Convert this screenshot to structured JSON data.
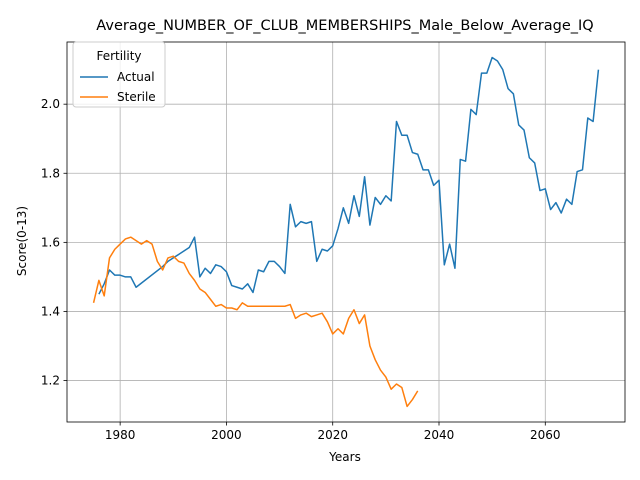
{
  "chart_data": {
    "type": "line",
    "title": "Average_NUMBER_OF_CLUB_MEMBERSHIPS_Male_Below_Average_IQ",
    "xlabel": "Years",
    "ylabel": "Score(0-13)",
    "xlim": [
      1970,
      2075
    ],
    "ylim": [
      1.08,
      2.18
    ],
    "xticks": [
      1980,
      2000,
      2020,
      2040,
      2060
    ],
    "yticks": [
      1.2,
      1.4,
      1.6,
      1.8,
      2.0
    ],
    "grid": true,
    "legend": {
      "title": "Fertility",
      "placement": "top-left"
    },
    "series": [
      {
        "name": "Actual",
        "color": "#1f77b4",
        "points": [
          [
            1976,
            1.45
          ],
          [
            1977,
            1.48
          ],
          [
            1978,
            1.52
          ],
          [
            1979,
            1.505
          ],
          [
            1980,
            1.505
          ],
          [
            1981,
            1.5
          ],
          [
            1982,
            1.5
          ],
          [
            1983,
            1.47
          ],
          [
            1988,
            1.53
          ],
          [
            1989,
            1.545
          ],
          [
            1990,
            1.555
          ],
          [
            1991,
            1.565
          ],
          [
            1992,
            1.575
          ],
          [
            1993,
            1.585
          ],
          [
            1994,
            1.615
          ],
          [
            1995,
            1.5
          ],
          [
            1996,
            1.525
          ],
          [
            1997,
            1.51
          ],
          [
            1998,
            1.535
          ],
          [
            1999,
            1.53
          ],
          [
            2000,
            1.515
          ],
          [
            2001,
            1.475
          ],
          [
            2002,
            1.47
          ],
          [
            2003,
            1.465
          ],
          [
            2004,
            1.48
          ],
          [
            2005,
            1.455
          ],
          [
            2006,
            1.52
          ],
          [
            2007,
            1.515
          ],
          [
            2008,
            1.545
          ],
          [
            2009,
            1.545
          ],
          [
            2010,
            1.53
          ],
          [
            2011,
            1.51
          ],
          [
            2012,
            1.71
          ],
          [
            2013,
            1.645
          ],
          [
            2014,
            1.66
          ],
          [
            2015,
            1.655
          ],
          [
            2016,
            1.66
          ],
          [
            2017,
            1.545
          ],
          [
            2018,
            1.58
          ],
          [
            2019,
            1.575
          ],
          [
            2020,
            1.59
          ],
          [
            2021,
            1.64
          ],
          [
            2022,
            1.7
          ],
          [
            2023,
            1.655
          ],
          [
            2024,
            1.735
          ],
          [
            2025,
            1.675
          ],
          [
            2026,
            1.79
          ],
          [
            2027,
            1.65
          ],
          [
            2028,
            1.73
          ],
          [
            2029,
            1.71
          ],
          [
            2030,
            1.735
          ],
          [
            2031,
            1.72
          ],
          [
            2032,
            1.95
          ],
          [
            2033,
            1.91
          ],
          [
            2034,
            1.91
          ],
          [
            2035,
            1.86
          ],
          [
            2036,
            1.855
          ],
          [
            2037,
            1.81
          ],
          [
            2038,
            1.81
          ],
          [
            2039,
            1.765
          ],
          [
            2040,
            1.78
          ],
          [
            2041,
            1.535
          ],
          [
            2042,
            1.595
          ],
          [
            2043,
            1.525
          ],
          [
            2044,
            1.84
          ],
          [
            2045,
            1.835
          ],
          [
            2046,
            1.985
          ],
          [
            2047,
            1.97
          ],
          [
            2048,
            2.09
          ],
          [
            2049,
            2.09
          ],
          [
            2050,
            2.135
          ],
          [
            2051,
            2.125
          ],
          [
            2052,
            2.1
          ],
          [
            2053,
            2.045
          ],
          [
            2054,
            2.03
          ],
          [
            2055,
            1.94
          ],
          [
            2056,
            1.925
          ],
          [
            2057,
            1.845
          ],
          [
            2058,
            1.83
          ],
          [
            2059,
            1.75
          ],
          [
            2060,
            1.755
          ],
          [
            2061,
            1.695
          ],
          [
            2062,
            1.715
          ],
          [
            2063,
            1.685
          ],
          [
            2064,
            1.725
          ],
          [
            2065,
            1.71
          ],
          [
            2066,
            1.805
          ],
          [
            2067,
            1.81
          ],
          [
            2068,
            1.96
          ],
          [
            2069,
            1.95
          ],
          [
            2070,
            2.1
          ]
        ]
      },
      {
        "name": "Sterile",
        "color": "#ff7f0e",
        "points": [
          [
            1975,
            1.425
          ],
          [
            1976,
            1.49
          ],
          [
            1977,
            1.445
          ],
          [
            1978,
            1.555
          ],
          [
            1979,
            1.58
          ],
          [
            1980,
            1.595
          ],
          [
            1981,
            1.61
          ],
          [
            1982,
            1.615
          ],
          [
            1983,
            1.605
          ],
          [
            1984,
            1.595
          ],
          [
            1985,
            1.605
          ],
          [
            1986,
            1.595
          ],
          [
            1987,
            1.545
          ],
          [
            1988,
            1.52
          ],
          [
            1989,
            1.555
          ],
          [
            1990,
            1.56
          ],
          [
            1991,
            1.545
          ],
          [
            1992,
            1.54
          ],
          [
            1993,
            1.51
          ],
          [
            1994,
            1.49
          ],
          [
            1995,
            1.465
          ],
          [
            1996,
            1.455
          ],
          [
            1997,
            1.435
          ],
          [
            1998,
            1.415
          ],
          [
            1999,
            1.42
          ],
          [
            2000,
            1.41
          ],
          [
            2001,
            1.41
          ],
          [
            2002,
            1.405
          ],
          [
            2003,
            1.425
          ],
          [
            2004,
            1.415
          ],
          [
            2005,
            1.415
          ],
          [
            2006,
            1.415
          ],
          [
            2007,
            1.415
          ],
          [
            2008,
            1.415
          ],
          [
            2009,
            1.415
          ],
          [
            2010,
            1.415
          ],
          [
            2011,
            1.415
          ],
          [
            2012,
            1.42
          ],
          [
            2013,
            1.38
          ],
          [
            2014,
            1.39
          ],
          [
            2015,
            1.395
          ],
          [
            2016,
            1.385
          ],
          [
            2017,
            1.39
          ],
          [
            2018,
            1.395
          ],
          [
            2019,
            1.37
          ],
          [
            2020,
            1.335
          ],
          [
            2021,
            1.35
          ],
          [
            2022,
            1.335
          ],
          [
            2023,
            1.38
          ],
          [
            2024,
            1.405
          ],
          [
            2025,
            1.365
          ],
          [
            2026,
            1.39
          ],
          [
            2027,
            1.3
          ],
          [
            2028,
            1.26
          ],
          [
            2029,
            1.23
          ],
          [
            2030,
            1.21
          ],
          [
            2031,
            1.175
          ],
          [
            2032,
            1.19
          ],
          [
            2033,
            1.18
          ],
          [
            2034,
            1.125
          ],
          [
            2035,
            1.145
          ],
          [
            2036,
            1.17
          ]
        ]
      }
    ]
  }
}
